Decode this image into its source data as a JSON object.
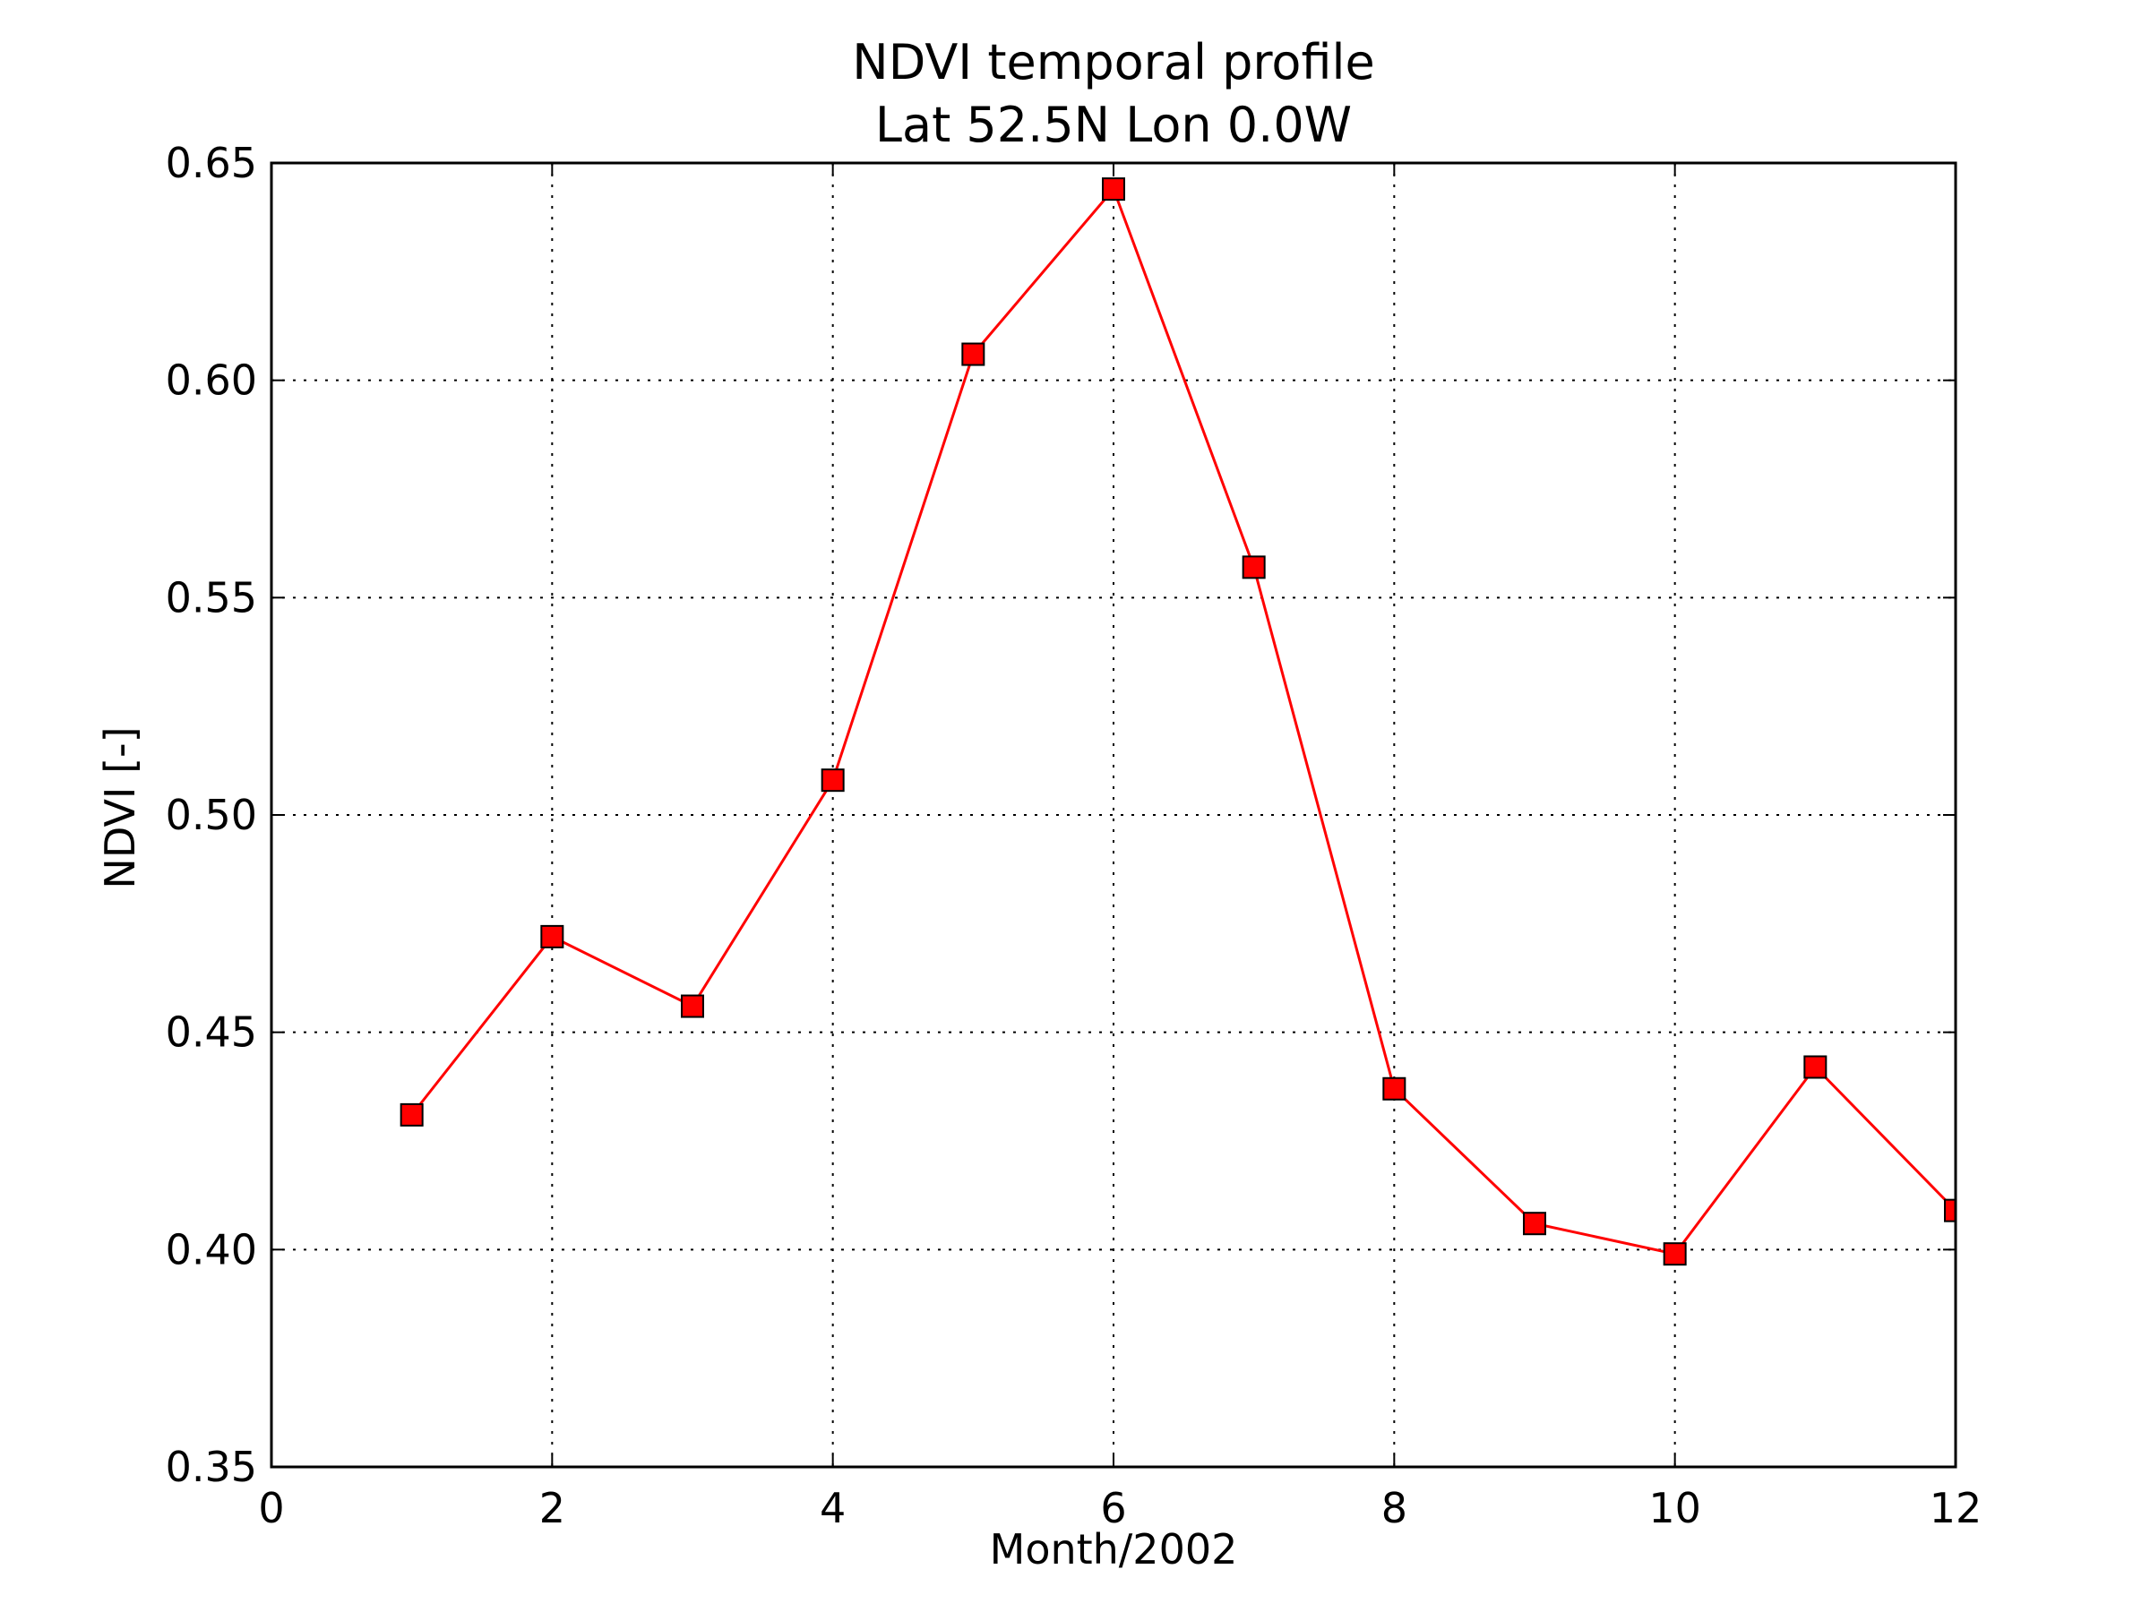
{
  "chart_data": {
    "type": "line",
    "title": "NDVI temporal profile",
    "subtitle": "Lat 52.5N Lon 0.0W",
    "xlabel": "Month/2002",
    "ylabel": "NDVI [-]",
    "xlim": [
      0,
      12
    ],
    "ylim": [
      0.35,
      0.65
    ],
    "xticks": [
      0,
      2,
      4,
      6,
      8,
      10,
      12
    ],
    "xtick_labels": [
      "0",
      "2",
      "4",
      "6",
      "8",
      "10",
      "12"
    ],
    "yticks": [
      0.35,
      0.4,
      0.45,
      0.5,
      0.55,
      0.6,
      0.65
    ],
    "ytick_labels": [
      "0.35",
      "0.40",
      "0.45",
      "0.50",
      "0.55",
      "0.60",
      "0.65"
    ],
    "grid": true,
    "series": [
      {
        "x": [
          1,
          2,
          3,
          4,
          5,
          6,
          7,
          8,
          9,
          10,
          11,
          12
        ],
        "y": [
          0.431,
          0.472,
          0.456,
          0.508,
          0.606,
          0.644,
          0.557,
          0.437,
          0.406,
          0.399,
          0.442,
          0.409
        ],
        "color": "#ff0000",
        "marker": "square"
      }
    ]
  }
}
